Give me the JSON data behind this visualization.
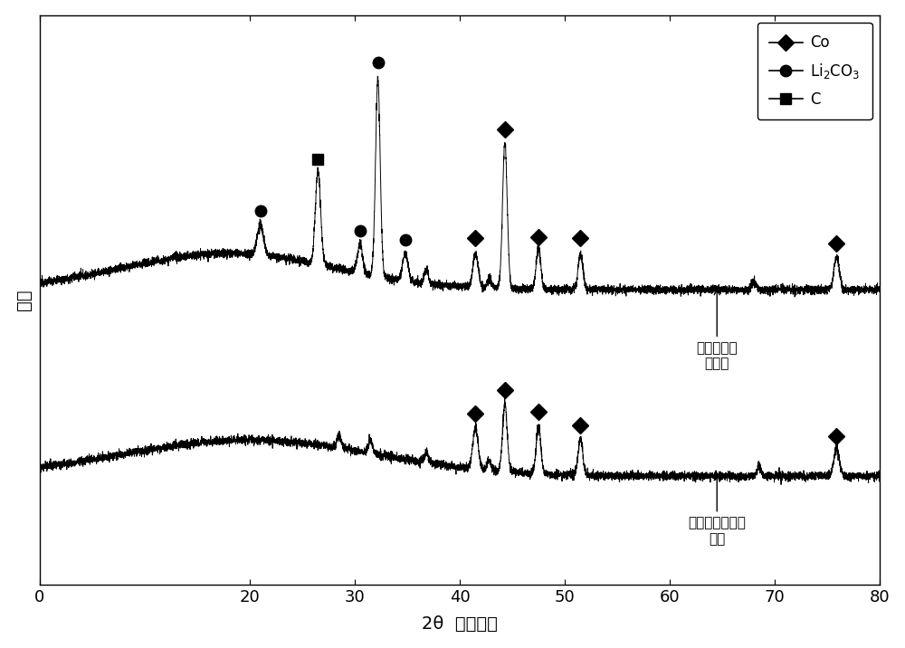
{
  "xlim": [
    0,
    80
  ],
  "ylim": [
    -0.05,
    1.05
  ],
  "xlabel": "2θ  （角度）",
  "ylabel": "强度",
  "background_color": "#ffffff",
  "axis_background": "#ffffff",
  "xticks": [
    0,
    20,
    30,
    40,
    50,
    60,
    70,
    80
  ],
  "xtick_labels": [
    "0",
    "20",
    "30",
    "40",
    "50",
    "60",
    "70",
    "80"
  ],
  "label_co": "Co",
  "label_li2co3": "Li$_2$CO$_3$",
  "label_c": "C",
  "annotation1_text": "焋烧后固体\n混合物",
  "annotation2_text": "湿式磁选精矿口\n排料",
  "figsize": [
    10.0,
    7.16
  ],
  "dpi": 100
}
